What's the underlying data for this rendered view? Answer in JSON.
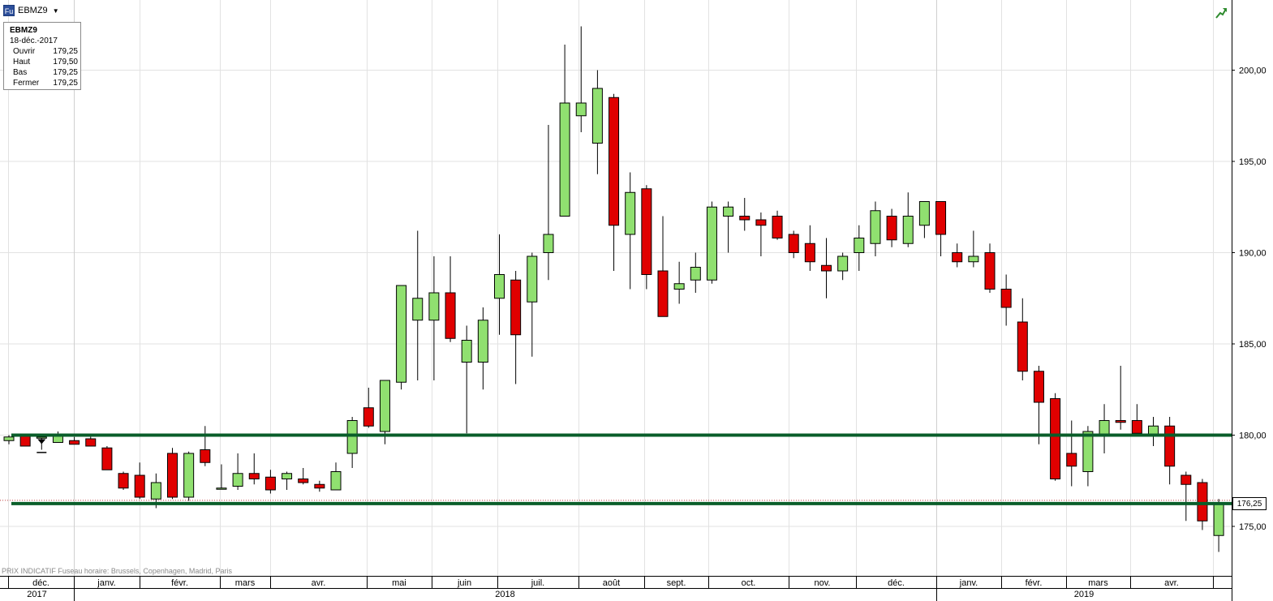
{
  "symbol": {
    "icon_label": "Fu",
    "name": "EBMZ9"
  },
  "info_box": {
    "title": "EBMZ9",
    "date": "18-déc.-2017",
    "rows": [
      {
        "label": "Ouvrir",
        "value": "179,25"
      },
      {
        "label": "Haut",
        "value": "179,50"
      },
      {
        "label": "Bas",
        "value": "179,25"
      },
      {
        "label": "Fermer",
        "value": "179,25"
      }
    ]
  },
  "last_price_label": "176,25",
  "footer_note": "PRIX INDICATIF   Fuseau horaire: Brussels, Copenhagen, Madrid, Paris",
  "colors": {
    "up": "#90e070",
    "down": "#e00000",
    "hline": "#0a5e2a",
    "grid": "#e2e2e2"
  },
  "chart_data": {
    "type": "candlestick",
    "interval": "weekly",
    "ylim": [
      173,
      203
    ],
    "y_ticks": [
      "175,00",
      "180,00",
      "185,00",
      "190,00",
      "195,00",
      "200,00"
    ],
    "months": [
      "déc.",
      "janv.",
      "févr.",
      "mars",
      "avr.",
      "mai",
      "juin",
      "juil.",
      "août",
      "sept.",
      "oct.",
      "nov.",
      "déc.",
      "janv.",
      "févr.",
      "mars",
      "avr."
    ],
    "years": [
      "2017",
      "2018",
      "2019"
    ],
    "horizontal_lines": [
      180.0,
      176.25
    ],
    "last_price": 176.25,
    "candles": [
      {
        "o": 179.7,
        "h": 180.0,
        "l": 179.5,
        "c": 179.9
      },
      {
        "o": 180.0,
        "h": 180.0,
        "l": 179.4,
        "c": 179.4
      },
      {
        "o": 179.9,
        "h": 180.0,
        "l": 179.2,
        "c": 179.9
      },
      {
        "o": 179.6,
        "h": 180.2,
        "l": 179.6,
        "c": 180.0
      },
      {
        "o": 179.7,
        "h": 179.9,
        "l": 179.5,
        "c": 179.5
      },
      {
        "o": 179.8,
        "h": 180.0,
        "l": 179.4,
        "c": 179.4
      },
      {
        "o": 179.3,
        "h": 179.4,
        "l": 178.1,
        "c": 178.1
      },
      {
        "o": 177.9,
        "h": 178.0,
        "l": 177.0,
        "c": 177.1
      },
      {
        "o": 177.8,
        "h": 178.5,
        "l": 176.5,
        "c": 176.6
      },
      {
        "o": 176.5,
        "h": 177.9,
        "l": 176.0,
        "c": 177.4
      },
      {
        "o": 179.0,
        "h": 179.3,
        "l": 176.5,
        "c": 176.6
      },
      {
        "o": 176.6,
        "h": 179.1,
        "l": 176.4,
        "c": 179.0
      },
      {
        "o": 179.2,
        "h": 180.5,
        "l": 178.3,
        "c": 178.5
      },
      {
        "o": 177.1,
        "h": 178.4,
        "l": 177.1,
        "c": 177.1
      },
      {
        "o": 177.2,
        "h": 179.0,
        "l": 177.0,
        "c": 177.9
      },
      {
        "o": 177.9,
        "h": 179.0,
        "l": 177.3,
        "c": 177.6
      },
      {
        "o": 177.7,
        "h": 178.1,
        "l": 176.8,
        "c": 177.0
      },
      {
        "o": 177.6,
        "h": 178.0,
        "l": 177.0,
        "c": 177.9
      },
      {
        "o": 177.6,
        "h": 178.2,
        "l": 177.3,
        "c": 177.4
      },
      {
        "o": 177.3,
        "h": 177.5,
        "l": 176.9,
        "c": 177.1
      },
      {
        "o": 177.0,
        "h": 178.5,
        "l": 177.0,
        "c": 178.0
      },
      {
        "o": 179.0,
        "h": 181.0,
        "l": 178.2,
        "c": 180.8
      },
      {
        "o": 181.5,
        "h": 182.6,
        "l": 180.4,
        "c": 180.5
      },
      {
        "o": 180.2,
        "h": 183.0,
        "l": 179.5,
        "c": 183.0
      },
      {
        "o": 182.9,
        "h": 188.2,
        "l": 182.5,
        "c": 188.2
      },
      {
        "o": 186.3,
        "h": 191.2,
        "l": 183.0,
        "c": 187.5
      },
      {
        "o": 186.3,
        "h": 189.8,
        "l": 183.0,
        "c": 187.8
      },
      {
        "o": 187.8,
        "h": 189.8,
        "l": 185.1,
        "c": 185.3
      },
      {
        "o": 184.0,
        "h": 186.0,
        "l": 180.1,
        "c": 185.2
      },
      {
        "o": 184.0,
        "h": 187.0,
        "l": 182.5,
        "c": 186.3
      },
      {
        "o": 187.5,
        "h": 191.0,
        "l": 185.5,
        "c": 188.8
      },
      {
        "o": 188.5,
        "h": 189.0,
        "l": 182.8,
        "c": 185.5
      },
      {
        "o": 187.3,
        "h": 190.0,
        "l": 184.3,
        "c": 189.8
      },
      {
        "o": 190.0,
        "h": 197.0,
        "l": 188.5,
        "c": 191.0
      },
      {
        "o": 192.0,
        "h": 201.4,
        "l": 192.0,
        "c": 198.2
      },
      {
        "o": 197.5,
        "h": 202.4,
        "l": 196.6,
        "c": 198.2
      },
      {
        "o": 196.0,
        "h": 200.0,
        "l": 194.3,
        "c": 199.0
      },
      {
        "o": 198.5,
        "h": 198.7,
        "l": 189.0,
        "c": 191.5
      },
      {
        "o": 191.0,
        "h": 194.4,
        "l": 188.0,
        "c": 193.3
      },
      {
        "o": 193.5,
        "h": 193.7,
        "l": 188.0,
        "c": 188.8
      },
      {
        "o": 189.0,
        "h": 192.0,
        "l": 186.5,
        "c": 186.5
      },
      {
        "o": 188.0,
        "h": 189.5,
        "l": 187.2,
        "c": 188.3
      },
      {
        "o": 188.5,
        "h": 190.0,
        "l": 187.8,
        "c": 189.2
      },
      {
        "o": 188.5,
        "h": 192.8,
        "l": 188.3,
        "c": 192.5
      },
      {
        "o": 192.0,
        "h": 192.8,
        "l": 190.0,
        "c": 192.5
      },
      {
        "o": 192.0,
        "h": 193.0,
        "l": 191.2,
        "c": 191.8
      },
      {
        "o": 191.8,
        "h": 192.2,
        "l": 189.8,
        "c": 191.5
      },
      {
        "o": 192.0,
        "h": 192.3,
        "l": 190.7,
        "c": 190.8
      },
      {
        "o": 191.0,
        "h": 191.2,
        "l": 189.7,
        "c": 190.0
      },
      {
        "o": 190.5,
        "h": 191.5,
        "l": 189.0,
        "c": 189.5
      },
      {
        "o": 189.3,
        "h": 190.8,
        "l": 187.5,
        "c": 189.0
      },
      {
        "o": 189.0,
        "h": 190.0,
        "l": 188.5,
        "c": 189.8
      },
      {
        "o": 190.0,
        "h": 191.5,
        "l": 189.0,
        "c": 190.8
      },
      {
        "o": 190.5,
        "h": 192.8,
        "l": 189.8,
        "c": 192.3
      },
      {
        "o": 192.0,
        "h": 192.4,
        "l": 190.3,
        "c": 190.7
      },
      {
        "o": 190.5,
        "h": 193.3,
        "l": 190.3,
        "c": 192.0
      },
      {
        "o": 191.5,
        "h": 192.8,
        "l": 190.8,
        "c": 192.8
      },
      {
        "o": 192.8,
        "h": 192.8,
        "l": 189.8,
        "c": 191.0
      },
      {
        "o": 190.0,
        "h": 190.5,
        "l": 189.2,
        "c": 189.5
      },
      {
        "o": 189.5,
        "h": 191.2,
        "l": 189.2,
        "c": 189.8
      },
      {
        "o": 190.0,
        "h": 190.5,
        "l": 187.8,
        "c": 188.0
      },
      {
        "o": 188.0,
        "h": 188.8,
        "l": 186.0,
        "c": 187.0
      },
      {
        "o": 186.2,
        "h": 187.5,
        "l": 183.0,
        "c": 183.5
      },
      {
        "o": 183.5,
        "h": 183.8,
        "l": 179.5,
        "c": 181.8
      },
      {
        "o": 182.0,
        "h": 182.3,
        "l": 177.5,
        "c": 177.6
      },
      {
        "o": 179.0,
        "h": 180.8,
        "l": 177.2,
        "c": 178.3
      },
      {
        "o": 178.0,
        "h": 180.5,
        "l": 177.2,
        "c": 180.2
      },
      {
        "o": 180.0,
        "h": 181.7,
        "l": 179.0,
        "c": 180.8
      },
      {
        "o": 180.8,
        "h": 183.8,
        "l": 180.3,
        "c": 180.7
      },
      {
        "o": 180.8,
        "h": 181.7,
        "l": 180.0,
        "c": 180.1
      },
      {
        "o": 180.0,
        "h": 181.0,
        "l": 179.4,
        "c": 180.5
      },
      {
        "o": 180.5,
        "h": 181.0,
        "l": 177.3,
        "c": 178.3
      },
      {
        "o": 177.8,
        "h": 178.0,
        "l": 175.3,
        "c": 177.3
      },
      {
        "o": 177.4,
        "h": 177.6,
        "l": 174.8,
        "c": 175.3
      },
      {
        "o": 174.5,
        "h": 176.5,
        "l": 173.6,
        "c": 176.2
      }
    ]
  }
}
